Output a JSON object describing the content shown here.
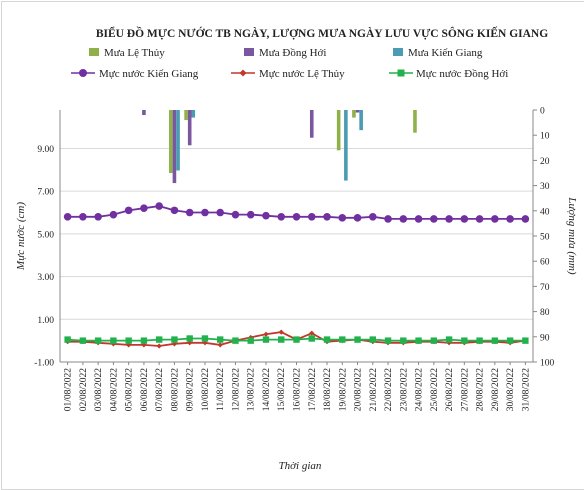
{
  "chart_data": {
    "type": "bar+line",
    "title": "BIỂU ĐỒ MỰC NƯỚC TB NGÀY, LƯỢNG MƯA NGÀY LƯU VỰC SÔNG KIẾN GIANG",
    "xlabel": "Thời gian",
    "ylabel_left": "Mực nước (cm)",
    "ylabel_right": "Lượng mưa (mm)",
    "ylim_left": [
      -1.0,
      10.8
    ],
    "ylim_right": [
      100,
      0
    ],
    "yticks_left": [
      "9.00",
      "7.00",
      "5.00",
      "3.00",
      "1.00",
      "-1.00"
    ],
    "yticks_left_values": [
      9,
      7,
      5,
      3,
      1,
      -1
    ],
    "yticks_right": [
      "0",
      "10",
      "20",
      "30",
      "40",
      "50",
      "60",
      "70",
      "80",
      "90",
      "100"
    ],
    "yticks_right_values": [
      0,
      10,
      20,
      30,
      40,
      50,
      60,
      70,
      80,
      90,
      100
    ],
    "grid": "horizontal",
    "legend_position": "top",
    "categories": [
      "01/08/2022",
      "02/08/2022",
      "03/08/2022",
      "04/08/2022",
      "05/08/2022",
      "06/08/2022",
      "07/08/2022",
      "08/08/2022",
      "09/08/2022",
      "10/08/2022",
      "11/08/2022",
      "12/08/2022",
      "13/08/2022",
      "14/08/2022",
      "15/08/2022",
      "16/08/2022",
      "17/08/2022",
      "18/08/2022",
      "19/08/2022",
      "20/08/2022",
      "21/08/2022",
      "22/08/2022",
      "23/08/2022",
      "24/08/2022",
      "25/08/2022",
      "26/08/2022",
      "27/08/2022",
      "28/08/2022",
      "29/08/2022",
      "30/08/2022",
      "31/08/2022"
    ],
    "bar_series": [
      {
        "name": "Mưa Lệ Thủy",
        "color": "#8fb14a",
        "values": [
          0,
          0,
          0,
          0,
          0,
          0,
          0,
          25,
          4,
          0,
          0,
          0,
          0,
          0,
          0,
          0,
          0,
          0,
          16,
          3,
          0,
          0,
          0,
          9,
          0,
          0,
          0,
          0,
          0,
          0,
          0
        ]
      },
      {
        "name": "Mưa Đồng Hới",
        "color": "#7a579e",
        "values": [
          0,
          0,
          0,
          0,
          0,
          2,
          0,
          29,
          14,
          0,
          0,
          0,
          0,
          0,
          0,
          0,
          11,
          0,
          0,
          1,
          0,
          0,
          0,
          0,
          0,
          0,
          0,
          0,
          0,
          0,
          0
        ]
      },
      {
        "name": "Mưa Kiến Giang",
        "color": "#4b9bb3",
        "values": [
          0,
          0,
          0,
          0,
          0,
          0,
          0,
          24,
          3,
          0,
          0,
          0,
          0,
          0,
          0,
          0,
          0,
          0,
          28,
          8,
          0,
          0,
          0,
          0,
          0,
          0,
          0,
          0,
          0,
          0,
          0
        ]
      }
    ],
    "line_series": [
      {
        "name": "Mực nước Kiến Giang",
        "color": "#7030a0",
        "marker": "circle",
        "values": [
          5.8,
          5.8,
          5.8,
          5.9,
          6.1,
          6.2,
          6.3,
          6.1,
          6.0,
          6.0,
          6.0,
          5.9,
          5.9,
          5.85,
          5.8,
          5.8,
          5.8,
          5.8,
          5.75,
          5.75,
          5.8,
          5.7,
          5.7,
          5.7,
          5.7,
          5.7,
          5.7,
          5.7,
          5.7,
          5.7,
          5.7
        ]
      },
      {
        "name": "Mực nước Lệ Thủy",
        "color": "#c0392b",
        "marker": "diamond",
        "values": [
          -0.05,
          -0.05,
          -0.1,
          -0.15,
          -0.2,
          -0.2,
          -0.25,
          -0.15,
          -0.1,
          -0.1,
          -0.2,
          0.0,
          0.15,
          0.3,
          0.4,
          0.05,
          0.35,
          -0.05,
          0.0,
          0.05,
          -0.05,
          -0.1,
          -0.1,
          -0.05,
          -0.05,
          -0.1,
          -0.1,
          -0.05,
          -0.05,
          -0.1,
          0.0
        ]
      },
      {
        "name": "Mực nước Đồng Hới",
        "color": "#22b14c",
        "marker": "square",
        "values": [
          0.05,
          0.0,
          0.0,
          0.0,
          0.0,
          0.0,
          0.05,
          0.05,
          0.1,
          0.1,
          0.05,
          0.0,
          0.0,
          0.05,
          0.05,
          0.05,
          0.1,
          0.05,
          0.05,
          0.05,
          0.05,
          0.0,
          0.0,
          0.0,
          0.0,
          0.05,
          0.0,
          0.0,
          0.0,
          0.0,
          0.0
        ]
      }
    ]
  }
}
